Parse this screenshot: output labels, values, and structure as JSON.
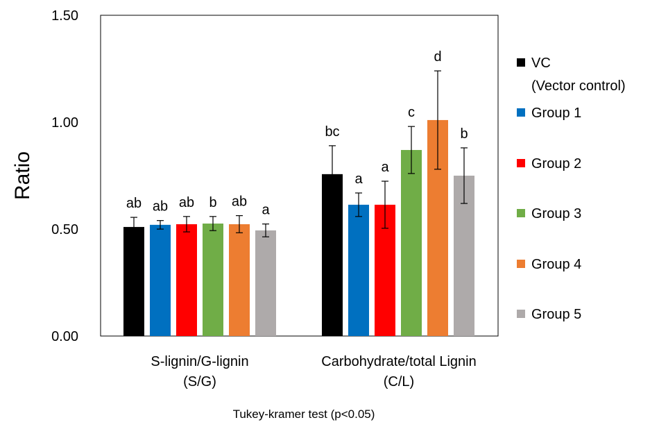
{
  "chart_data": {
    "type": "bar",
    "ylabel": "Ratio",
    "xlabel": "Tukey-kramer test (p<0.05)",
    "ylim": [
      0,
      1.5
    ],
    "yticks": [
      "0.00",
      "0.50",
      "1.00",
      "1.50"
    ],
    "ytick_values": [
      0,
      0.5,
      1.0,
      1.5
    ],
    "grid": false,
    "legend_position": "right",
    "categories": [
      {
        "line1": "S-lignin/G-lignin",
        "line2": "(S/G)"
      },
      {
        "line1": "Carbohydrate/total Lignin",
        "line2": "(C/L)"
      }
    ],
    "series": [
      {
        "name": "VC",
        "name2": "(Vector control)",
        "color": "#000000",
        "values": [
          0.51,
          0.757
        ],
        "errors": [
          0.045,
          0.133
        ],
        "letters": [
          "ab",
          "bc"
        ]
      },
      {
        "name": "Group 1",
        "color": "#0070C0",
        "values": [
          0.52,
          0.614
        ],
        "errors": [
          0.02,
          0.055
        ],
        "letters": [
          "ab",
          "a"
        ]
      },
      {
        "name": "Group 2",
        "color": "#FF0000",
        "values": [
          0.523,
          0.614
        ],
        "errors": [
          0.036,
          0.11
        ],
        "letters": [
          "ab",
          "a"
        ]
      },
      {
        "name": "Group 3",
        "color": "#70AD47",
        "values": [
          0.526,
          0.87
        ],
        "errors": [
          0.033,
          0.11
        ],
        "letters": [
          "b",
          "c"
        ]
      },
      {
        "name": "Group 4",
        "color": "#ED7D31",
        "values": [
          0.523,
          1.01
        ],
        "errors": [
          0.04,
          0.23
        ],
        "letters": [
          "ab",
          "d"
        ]
      },
      {
        "name": "Group 5",
        "color": "#AEAAAA",
        "values": [
          0.494,
          0.75
        ],
        "errors": [
          0.03,
          0.13
        ],
        "letters": [
          "a",
          "b"
        ]
      }
    ]
  }
}
